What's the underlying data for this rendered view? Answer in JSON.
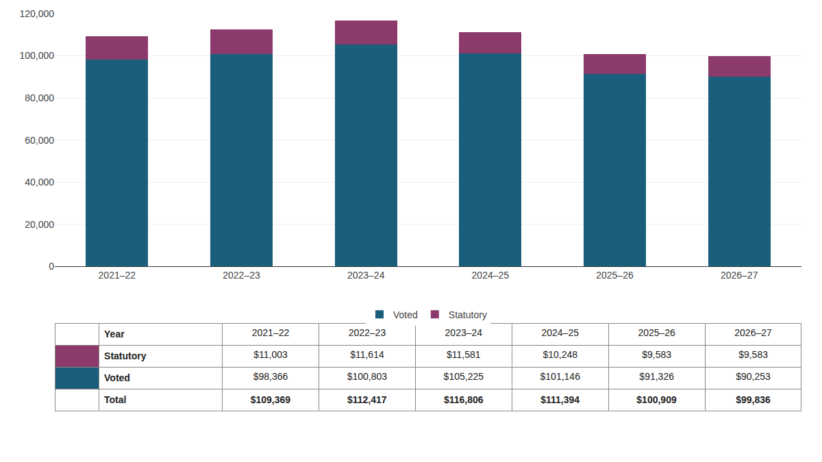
{
  "chart_data": {
    "type": "bar",
    "stacked": true,
    "categories": [
      "2021–22",
      "2022–23",
      "2023–24",
      "2024–25",
      "2025–26",
      "2026–27"
    ],
    "series": [
      {
        "name": "Voted",
        "color": "#1b5e7b",
        "values": [
          98366,
          100803,
          105225,
          101146,
          91326,
          90253
        ]
      },
      {
        "name": "Statutory",
        "color": "#8b3a6b",
        "values": [
          11003,
          11614,
          11581,
          10248,
          9583,
          9583
        ]
      }
    ],
    "ylim": [
      0,
      120000
    ],
    "yticks": [
      0,
      {
        "value": 20000,
        "label": "20,000"
      },
      {
        "value": 40000,
        "label": "40,000"
      },
      {
        "value": 60000,
        "label": "60,000"
      },
      {
        "value": 80000,
        "label": "80,000"
      },
      {
        "value": 100000,
        "label": "100,000"
      },
      {
        "value": 120000,
        "label": "120,000"
      }
    ],
    "grid": true,
    "legend": "bottom",
    "table": {
      "header_label": "Year",
      "rows": [
        {
          "label": "Statutory",
          "value_labels": [
            "$11,003",
            "$11,614",
            "$11,581",
            "$10,248",
            "$9,583",
            "$9,583"
          ]
        },
        {
          "label": "Voted",
          "value_labels": [
            "$98,366",
            "$100,803",
            "$105,225",
            "$101,146",
            "$91,326",
            "$90,253"
          ]
        },
        {
          "label": "Total",
          "value_labels": [
            "$109,369",
            "$112,417",
            "$116,806",
            "$111,394",
            "$100,909",
            "$99,836"
          ]
        }
      ]
    }
  }
}
